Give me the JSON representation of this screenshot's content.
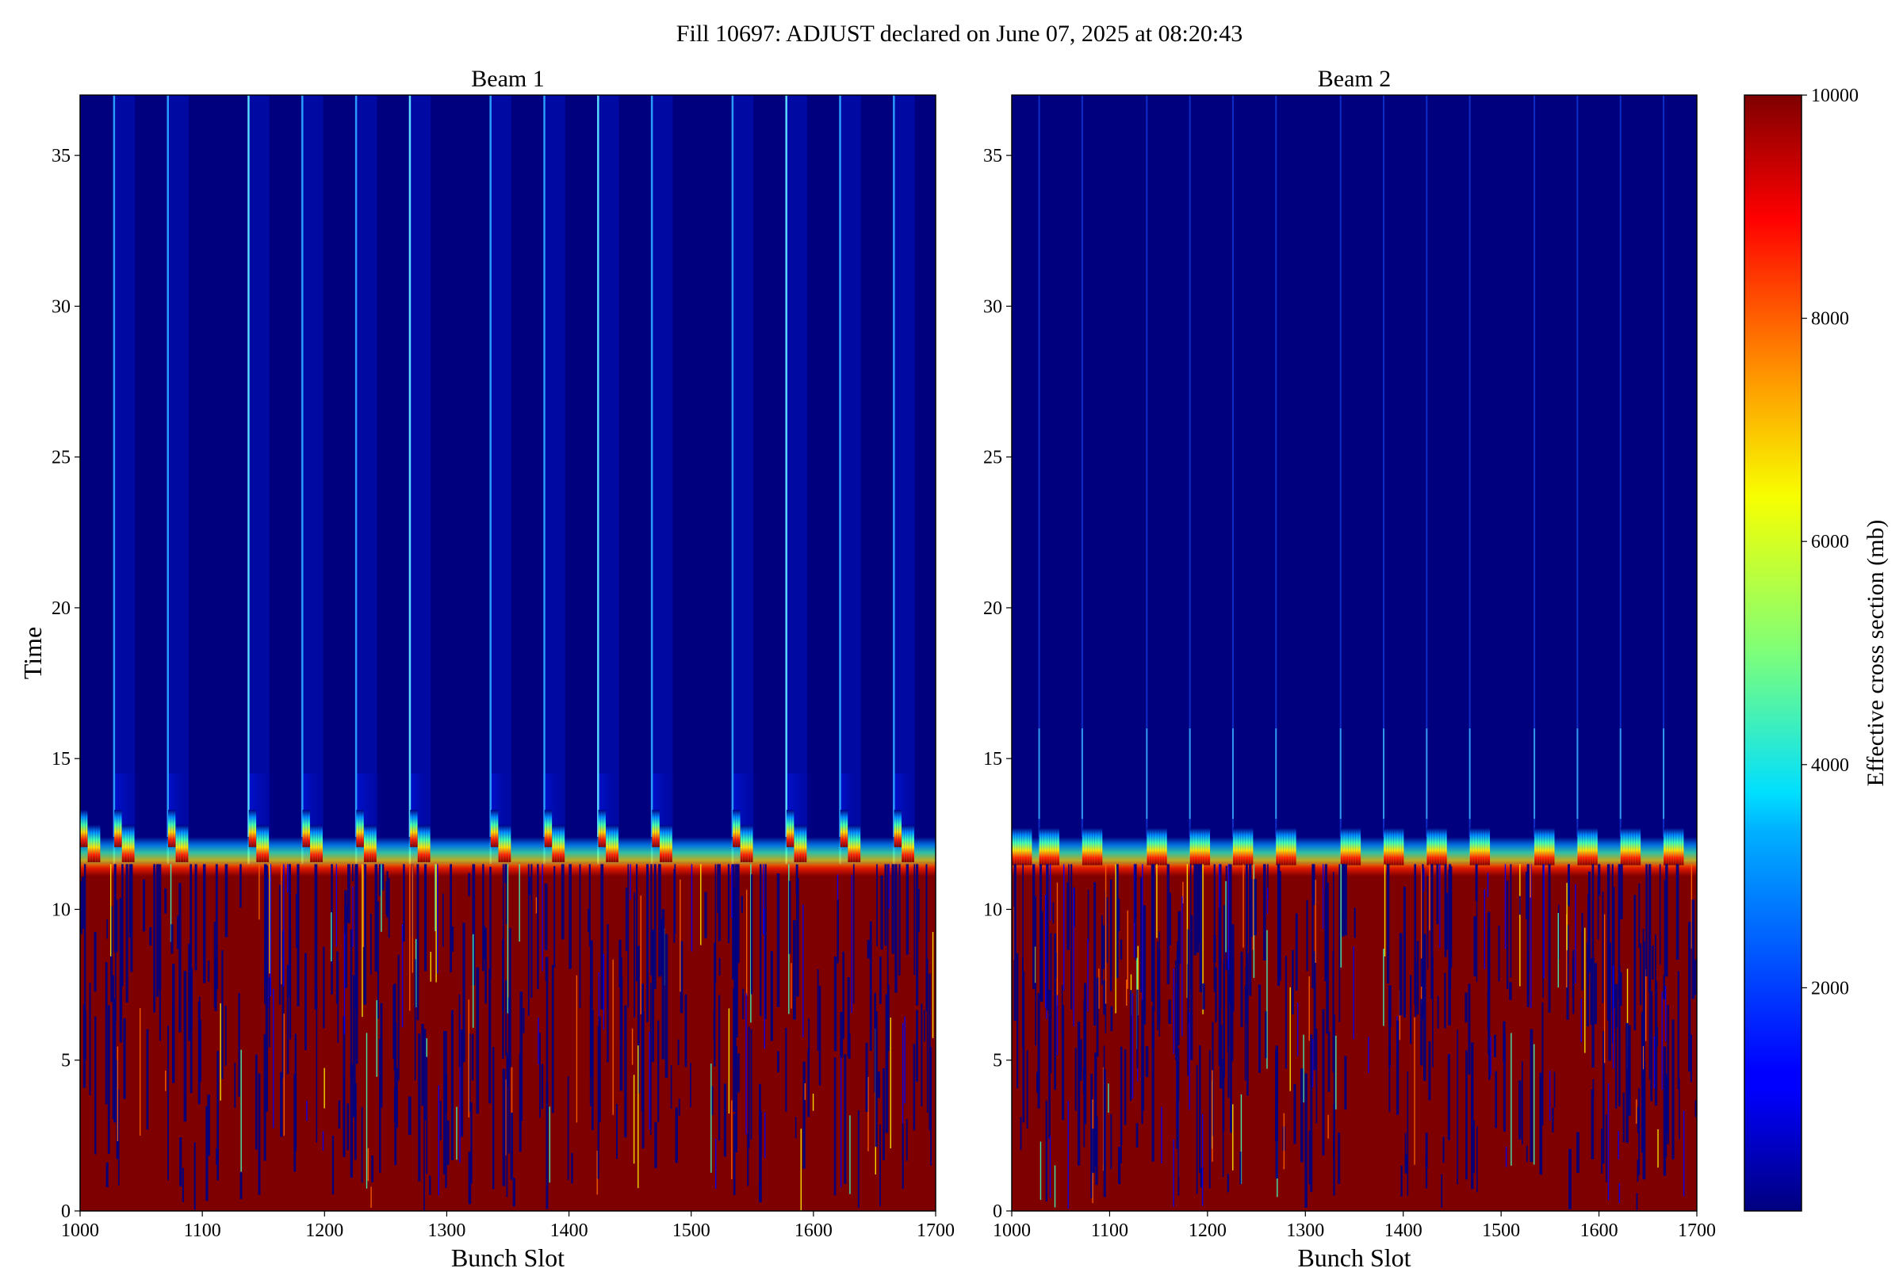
{
  "figure": {
    "suptitle": "Fill 10697: ADJUST declared on June 07, 2025 at 08:20:43"
  },
  "colorbar": {
    "label": "Effective cross section (mb)",
    "range": [
      0,
      10000
    ],
    "ticks": [
      2000,
      4000,
      6000,
      8000,
      10000
    ],
    "colormap": "jet"
  },
  "chart_data": [
    {
      "type": "heatmap",
      "title": "Beam 1",
      "xlabel": "Bunch Slot",
      "ylabel": "Time",
      "xlim": [
        1000,
        1700
      ],
      "ylim": [
        0,
        37
      ],
      "xticks": [
        1000,
        1100,
        1200,
        1300,
        1400,
        1500,
        1600,
        1700
      ],
      "yticks": [
        0,
        5,
        10,
        15,
        20,
        25,
        30,
        35
      ],
      "value_range": [
        0,
        10000
      ],
      "transition_time": 11.5,
      "value_before_transition": 10000,
      "value_after_transition": 0,
      "train_starts": [
        1028,
        1072,
        1138,
        1182,
        1226,
        1270,
        1336,
        1380,
        1424,
        1468,
        1534,
        1578,
        1622,
        1666
      ],
      "grid": false
    },
    {
      "type": "heatmap",
      "title": "Beam 2",
      "xlabel": "Bunch Slot",
      "ylabel": "",
      "xlim": [
        1000,
        1700
      ],
      "ylim": [
        0,
        37
      ],
      "xticks": [
        1000,
        1100,
        1200,
        1300,
        1400,
        1500,
        1600,
        1700
      ],
      "yticks": [
        0,
        5,
        10,
        15,
        20,
        25,
        30,
        35
      ],
      "value_range": [
        0,
        10000
      ],
      "transition_time": 11.5,
      "value_before_transition": 10000,
      "value_after_transition": 0,
      "train_starts": [
        1028,
        1072,
        1138,
        1182,
        1226,
        1270,
        1336,
        1380,
        1424,
        1468,
        1534,
        1578,
        1622,
        1666
      ],
      "grid": false
    }
  ]
}
